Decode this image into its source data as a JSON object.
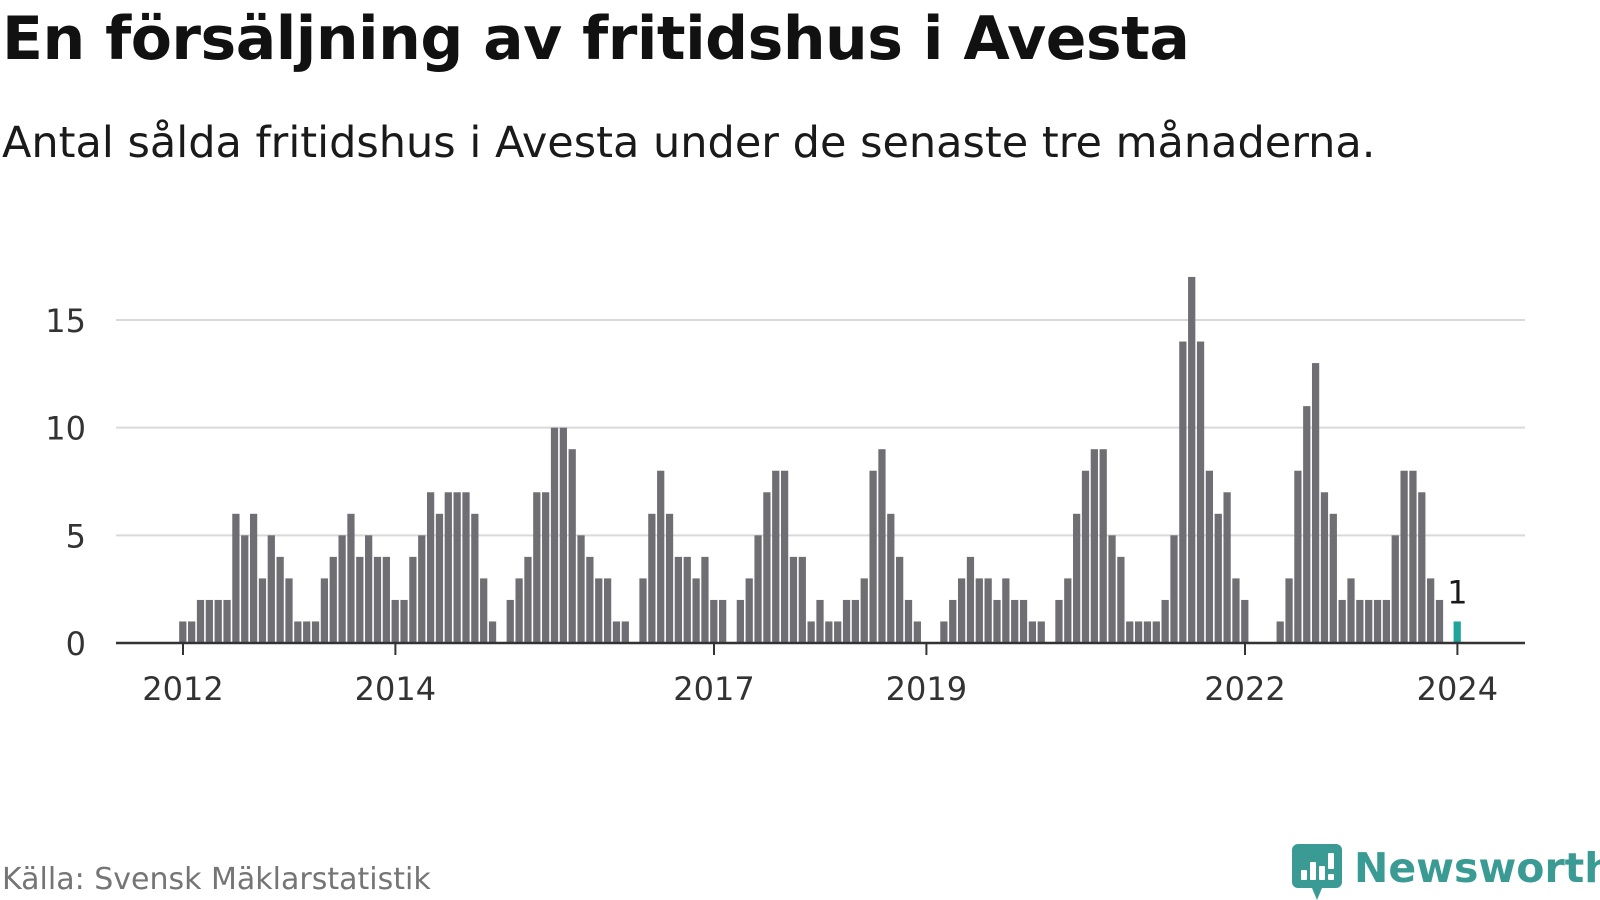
{
  "header": {
    "title": "En försäljning av fritidshus i Avesta",
    "subtitle": "Antal sålda fritidshus i Avesta under de senaste tre månaderna."
  },
  "footer": {
    "source": "Källa: Svensk Mäklarstatistik",
    "brand": "Newsworthy",
    "brand_icon": "newsworthy-logo-icon"
  },
  "colors": {
    "bar": "#6f6e73",
    "highlight": "#1fa39b",
    "grid": "#d9d9d9",
    "axis": "#333333",
    "brand": "#3a9a94"
  },
  "chart_data": {
    "type": "bar",
    "x_start": "2012-01",
    "values": [
      1,
      1,
      2,
      2,
      2,
      2,
      6,
      5,
      6,
      3,
      5,
      4,
      3,
      1,
      1,
      1,
      3,
      4,
      5,
      6,
      4,
      5,
      4,
      4,
      2,
      2,
      4,
      5,
      7,
      6,
      7,
      7,
      7,
      6,
      3,
      1,
      null,
      2,
      3,
      4,
      7,
      7,
      10,
      10,
      9,
      5,
      4,
      3,
      3,
      1,
      1,
      null,
      3,
      6,
      8,
      6,
      4,
      4,
      3,
      4,
      2,
      2,
      null,
      2,
      3,
      5,
      7,
      8,
      8,
      4,
      4,
      1,
      2,
      1,
      1,
      2,
      2,
      3,
      8,
      9,
      6,
      4,
      2,
      1,
      null,
      null,
      1,
      2,
      3,
      4,
      3,
      3,
      2,
      3,
      2,
      2,
      1,
      1,
      null,
      2,
      3,
      6,
      8,
      9,
      9,
      5,
      4,
      1,
      1,
      1,
      1,
      2,
      5,
      14,
      17,
      14,
      8,
      6,
      7,
      3,
      2,
      null,
      null,
      null,
      1,
      3,
      8,
      11,
      13,
      7,
      6,
      2,
      3,
      2,
      2,
      2,
      2,
      5,
      8,
      8,
      7,
      3,
      2,
      null,
      1
    ],
    "highlight_last": true,
    "last_label": "1",
    "x_ticks": [
      "2012",
      "2014",
      "2017",
      "2019",
      "2022",
      "2024"
    ],
    "y_ticks": [
      "0",
      "5",
      "10",
      "15"
    ],
    "ylim": [
      0,
      17
    ],
    "grid": true
  }
}
